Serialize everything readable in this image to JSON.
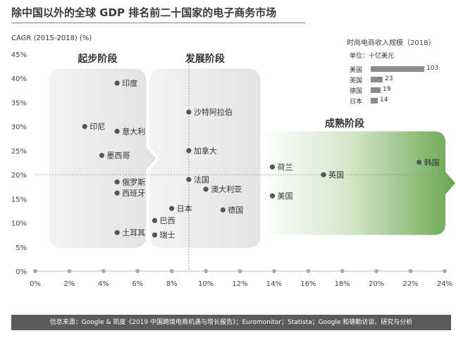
{
  "title": "除中国以外的全球 GDP 排名前二十国家的电子商务市场",
  "footer": "信息来源：Google & 凯度《2019 中国跨境电商机遇与增长报告》；Euromonitor；Statista；Google 和德勤访谈、研究与分析",
  "colors": {
    "stage_gray": "#e6e6e6",
    "stage_green": "#6aa84f",
    "dot": "#555555",
    "axis": "#aaaaaa"
  },
  "inset": {
    "title": "时尚电商收入规模（2018）",
    "unit": "单位：十亿美元",
    "bars": [
      {
        "label": "美国",
        "value": 103
      },
      {
        "label": "英国",
        "value": 23
      },
      {
        "label": "德国",
        "value": 19
      },
      {
        "label": "日本",
        "value": 14
      }
    ]
  },
  "chart_data": {
    "type": "scatter",
    "ylabel": "CAGR (2015-2018) (%)",
    "xlabel": "",
    "xlim": [
      0,
      24
    ],
    "ylim": [
      0,
      45
    ],
    "xticks": [
      "0%",
      "2%",
      "4%",
      "6%",
      "8%",
      "10%",
      "12%",
      "14%",
      "16%",
      "18%",
      "20%",
      "22%",
      "24%"
    ],
    "yticks": [
      "0%",
      "5%",
      "10%",
      "15%",
      "20%",
      "25%",
      "30%",
      "35%",
      "40%",
      "45%"
    ],
    "reference_lines": {
      "x": 9,
      "y": 20
    },
    "stages": [
      {
        "label": "起步阶段",
        "x_range": [
          0.8,
          6.5
        ]
      },
      {
        "label": "发展阶段",
        "x_range": [
          6.7,
          13.2
        ]
      },
      {
        "label": "成熟阶段",
        "x_range": [
          13.2,
          24
        ]
      }
    ],
    "points": [
      {
        "label": "印度",
        "x": 4.8,
        "y": 39
      },
      {
        "label": "印尼",
        "x": 2.9,
        "y": 30
      },
      {
        "label": "意大利",
        "x": 4.8,
        "y": 29
      },
      {
        "label": "墨西哥",
        "x": 3.9,
        "y": 24
      },
      {
        "label": "俄罗斯",
        "x": 4.8,
        "y": 18.5
      },
      {
        "label": "西班牙",
        "x": 4.8,
        "y": 16.2
      },
      {
        "label": "土耳其",
        "x": 4.8,
        "y": 8
      },
      {
        "label": "沙特阿拉伯",
        "x": 9,
        "y": 33
      },
      {
        "label": "加拿大",
        "x": 9,
        "y": 25
      },
      {
        "label": "法国",
        "x": 9,
        "y": 19
      },
      {
        "label": "澳大利亚",
        "x": 10,
        "y": 17
      },
      {
        "label": "日本",
        "x": 8,
        "y": 13
      },
      {
        "label": "德国",
        "x": 11,
        "y": 12.7
      },
      {
        "label": "巴西",
        "x": 7,
        "y": 10.5
      },
      {
        "label": "瑞士",
        "x": 7,
        "y": 7.5
      },
      {
        "label": "荷兰",
        "x": 13.9,
        "y": 21.6
      },
      {
        "label": "英国",
        "x": 16.9,
        "y": 20
      },
      {
        "label": "美国",
        "x": 13.9,
        "y": 15.6
      },
      {
        "label": "韩国",
        "x": 22.5,
        "y": 22.6
      }
    ]
  }
}
